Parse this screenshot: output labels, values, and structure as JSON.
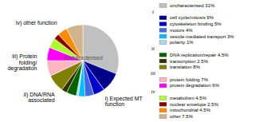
{
  "chart_data": {
    "type": "pie",
    "center_text": "uncharacterised",
    "categories": [
      "uncharacterised 31%",
      "cell cycle/mitosis 9%",
      "cytoskeleton binding 5%",
      "motors 4%",
      "vesicle-mediated transport 3%",
      "polarity 1%",
      "DNA replication/repair 4.5%",
      "transcription 2.5%",
      "translation 8%",
      "protein folding 7%",
      "protein degradation 6%",
      "metabolism 4.5%",
      "nuclear envelope 2.5%",
      "mitochondrial 4.5%",
      "other 7.5%"
    ],
    "values": [
      31,
      9,
      5,
      4,
      3,
      1,
      4.5,
      2.5,
      8,
      7,
      6,
      4.5,
      2.5,
      4.5,
      7.5
    ],
    "colors": [
      "#c0c0c0",
      "#00008B",
      "#0000CD",
      "#4169E1",
      "#00BFFF",
      "#ADD8E6",
      "#006400",
      "#333300",
      "#808000",
      "#FFB6C1",
      "#FF00FF",
      "#ADFF2F",
      "#8B0000",
      "#FF8C00",
      "#D2B48C"
    ],
    "groups": [
      {
        "label": "i",
        "text": "i) Expected MT\nfunction",
        "start": 1,
        "end": 5
      },
      {
        "label": "ii",
        "text": "ii) DNA/RNA\nassociated",
        "start": 6,
        "end": 8
      },
      {
        "label": "iii",
        "text": "iii) Protein\nfolding/\ndegradation",
        "start": 9,
        "end": 10
      },
      {
        "label": "iv",
        "text": "iv) other function",
        "start": 11,
        "end": 14
      }
    ]
  }
}
